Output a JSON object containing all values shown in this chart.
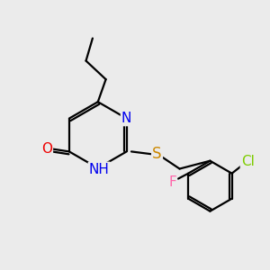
{
  "background_color": "#ebebeb",
  "bond_color": "#000000",
  "atom_colors": {
    "N": "#0000ee",
    "O": "#ee0000",
    "S": "#cc8800",
    "Cl": "#7dcc00",
    "F": "#ff66aa",
    "C": "#000000"
  },
  "font_size_atoms": 11,
  "line_width": 1.6
}
